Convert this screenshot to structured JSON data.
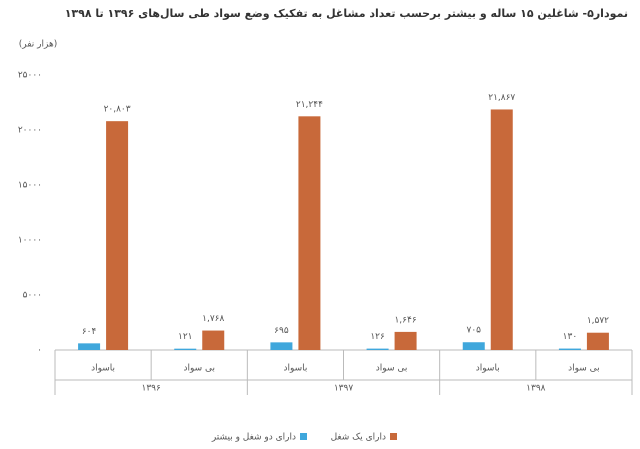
{
  "chart_data": {
    "type": "bar",
    "title": "نمودار۵- شاغلین ۱۵ ساله و بیشتر برحسب تعداد مشاغل به تفکیک وضع سواد طی سال‌های ۱۳۹۶ تا ۱۳۹۸",
    "unit": "(هزار نفر)",
    "categories": [
      "باسواد",
      "بی سواد",
      "باسواد",
      "بی سواد",
      "باسواد",
      "بی سواد"
    ],
    "groups": [
      "۱۳۹۶",
      "۱۳۹۷",
      "۱۳۹۸"
    ],
    "series": [
      {
        "name": "دارای دو شغل و بیشتر",
        "color": "#3fa7dc",
        "values": [
          604,
          121,
          695,
          126,
          705,
          130
        ],
        "value_labels": [
          "۶۰۴",
          "۱۲۱",
          "۶۹۵",
          "۱۲۶",
          "۷۰۵",
          "۱۳۰"
        ]
      },
      {
        "name": "دارای یک شغل",
        "color": "#c8693a",
        "values": [
          20803,
          1768,
          21244,
          1646,
          21867,
          1572
        ],
        "value_labels": [
          "۲۰,۸۰۳",
          "۱,۷۶۸",
          "۲۱,۲۴۴",
          "۱,۶۴۶",
          "۲۱,۸۶۷",
          "۱,۵۷۲"
        ]
      }
    ],
    "ylim": [
      0,
      25000
    ],
    "yticks": [
      {
        "value": 0,
        "label": "۰"
      },
      {
        "value": 5000,
        "label": "۵۰۰۰"
      },
      {
        "value": 10000,
        "label": "۱۰۰۰۰"
      },
      {
        "value": 15000,
        "label": "۱۵۰۰۰"
      },
      {
        "value": 20000,
        "label": "۲۰۰۰۰"
      },
      {
        "value": 25000,
        "label": "۲۵۰۰۰"
      }
    ],
    "grid": false
  }
}
